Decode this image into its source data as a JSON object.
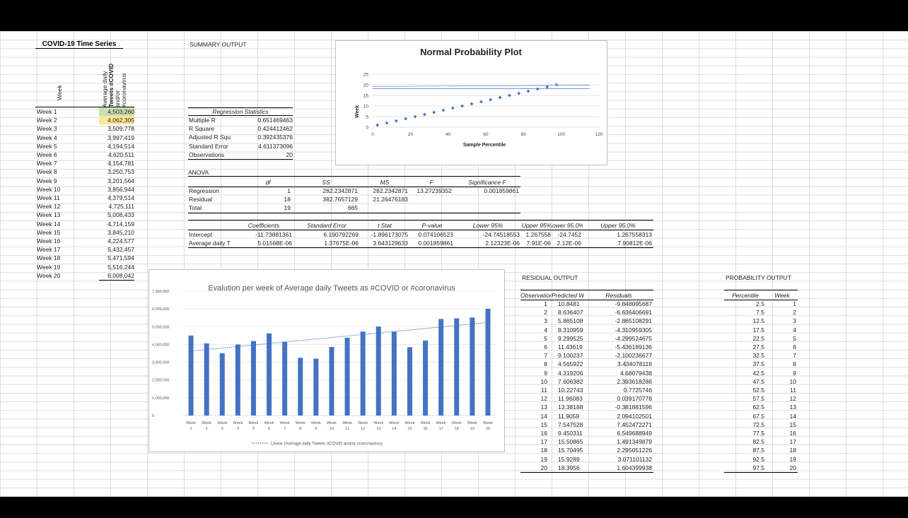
{
  "covid": {
    "title": "COVID-19 Time Series",
    "col_week": "Week",
    "col_avg": [
      "Average daily",
      "Tweets #COVID",
      "and/or",
      "#coronavirus"
    ],
    "rows": [
      [
        "Week 1",
        "4,503,260"
      ],
      [
        "Week 2",
        "4,062,305"
      ],
      [
        "Week 3",
        "3,509,778"
      ],
      [
        "Week 4",
        "3,997,419"
      ],
      [
        "Week 5",
        "4,194,514"
      ],
      [
        "Week 6",
        "4,620,511"
      ],
      [
        "Week 7",
        "4,154,781"
      ],
      [
        "Week 8",
        "3,250,753"
      ],
      [
        "Week 9",
        "3,201,564"
      ],
      [
        "Week 10",
        "3,856,944"
      ],
      [
        "Week 11",
        "4,379,514"
      ],
      [
        "Week 12",
        "4,725,111"
      ],
      [
        "Week 13",
        "5,008,433"
      ],
      [
        "Week 14",
        "4,714,159"
      ],
      [
        "Week 15",
        "3,845,210"
      ],
      [
        "Week 16",
        "4,224,577"
      ],
      [
        "Week 17",
        "5,432,457"
      ],
      [
        "Week 18",
        "5,471,594"
      ],
      [
        "Week 19",
        "5,516,244"
      ],
      [
        "Week 20",
        "6,008,042"
      ]
    ]
  },
  "summary": {
    "title": "SUMMARY OUTPUT",
    "reg_stats_title": "Regression Statistics",
    "reg_stats": [
      [
        "Multiple R",
        "0.651469463"
      ],
      [
        "R Square",
        "0.424412462"
      ],
      [
        "Adjusted R Squ",
        "0.392435376"
      ],
      [
        "Standard Error",
        "4.611373096"
      ],
      [
        "Observations",
        "20"
      ]
    ],
    "anova_title": "ANOVA",
    "anova_headers": [
      "df",
      "SS",
      "MS",
      "F",
      "Significance F"
    ],
    "anova_rows": [
      [
        "Regression",
        "1",
        "282.2342871",
        "282.2342871",
        "13.27239352",
        "0.001859861"
      ],
      [
        "Residual",
        "18",
        "382.7657129",
        "21.26476183",
        "",
        ""
      ],
      [
        "Total",
        "19",
        "665",
        "",
        "",
        ""
      ]
    ],
    "coef_headers": [
      "Coefficients",
      "Standard Error",
      "t Stat",
      "P-value",
      "Lower 95%",
      "Upper 95%",
      "ower 95.0%",
      "Upper 95.0%"
    ],
    "coef_rows": [
      [
        "Intercept",
        "-11.73881361",
        "6.190792269",
        "-1.896173075",
        "0.074106523",
        "-24.74518553",
        "1.267558",
        "-24.7452",
        "1.267558313"
      ],
      [
        "Average daily T",
        "5.01568E-06",
        "1.37675E-06",
        "3.643129633",
        "0.001859861",
        "2.12323E-06",
        "7.91E-06",
        "2.12E-06",
        "7.90812E-06"
      ]
    ]
  },
  "npp": {
    "title": "Normal Probability Plot",
    "ylabel": "Week",
    "xlabel": "Sample Percentile",
    "yticks": [
      "25",
      "20",
      "15",
      "10",
      "5",
      "0"
    ],
    "xticks": [
      "0",
      "20",
      "40",
      "60",
      "80",
      "100",
      "120"
    ]
  },
  "chart_data": [
    {
      "type": "bar",
      "title": "Evalution per week of Average daily Tweets as #COVID or #coronavirus",
      "categories": [
        "Week 1",
        "Week 2",
        "Week 3",
        "Week 4",
        "Week 5",
        "Week 6",
        "Week 7",
        "Week 8",
        "Week 9",
        "Week 10",
        "Week 11",
        "Week 12",
        "Week 13",
        "Week 14",
        "Week 15",
        "Week 16",
        "Week 17",
        "Week 18",
        "Week 19",
        "Week 20"
      ],
      "values": [
        4503260,
        4062305,
        3509778,
        3997419,
        4194514,
        4620511,
        4154781,
        3250753,
        3201564,
        3856944,
        4379514,
        4725111,
        5008433,
        4714159,
        3845210,
        4224577,
        5432457,
        5471594,
        5516244,
        6008042
      ],
      "ylim": [
        0,
        7000000
      ],
      "yticks": [
        "7,000,000",
        "6,000,000",
        "5,000,000",
        "4,000,000",
        "3,000,000",
        "2,000,000",
        "1,000,000",
        "0"
      ],
      "xtick_top": "Week",
      "xtick_bottom": [
        "1",
        "2",
        "3",
        "4",
        "5",
        "6",
        "7",
        "8",
        "9",
        "10",
        "11",
        "12",
        "13",
        "14",
        "15",
        "16",
        "17",
        "18",
        "19",
        "20"
      ],
      "trendline_legend": "Linear (Average daily Tweets #COVID and/or #coronavirus)",
      "color": "#4472c4"
    },
    {
      "type": "scatter",
      "title": "Normal Probability Plot",
      "x": [
        2.5,
        7.5,
        12.5,
        17.5,
        22.5,
        27.5,
        32.5,
        37.5,
        42.5,
        47.5,
        52.5,
        57.5,
        62.5,
        67.5,
        72.5,
        77.5,
        82.5,
        87.5,
        92.5,
        97.5
      ],
      "y": [
        1,
        2,
        3,
        4,
        5,
        6,
        7,
        8,
        9,
        10,
        11,
        12,
        13,
        14,
        15,
        16,
        17,
        18,
        19,
        20
      ],
      "xlim": [
        0,
        120
      ],
      "ylim": [
        0,
        25
      ],
      "xlabel": "Sample Percentile",
      "ylabel": "Week",
      "color": "#4472c4"
    }
  ],
  "residual": {
    "title": "RESIDUAL OUTPUT",
    "headers": [
      "Observation",
      "Predicted We",
      "Residuals"
    ],
    "rows": [
      [
        "1",
        "10.8481",
        "-9.848095687"
      ],
      [
        "2",
        "8.636407",
        "-6.636406691"
      ],
      [
        "3",
        "5.865108",
        "-2.865108291"
      ],
      [
        "4",
        "8.310959",
        "-4.310959305"
      ],
      [
        "5",
        "9.299525",
        "-4.299524675"
      ],
      [
        "6",
        "11.43619",
        "-5.436189136"
      ],
      [
        "7",
        "9.100237",
        "-2.100236677"
      ],
      [
        "8",
        "4.565922",
        "3.434078116"
      ],
      [
        "9",
        "4.319206",
        "4.68079438"
      ],
      [
        "10",
        "7.606382",
        "2.393618286"
      ],
      [
        "11",
        "10.22743",
        "0.7725746"
      ],
      [
        "12",
        "11.96083",
        "0.039170778"
      ],
      [
        "13",
        "13.38188",
        "-0.381881596"
      ],
      [
        "14",
        "11.9059",
        "2.094102501"
      ],
      [
        "15",
        "7.547528",
        "7.452472271"
      ],
      [
        "16",
        "9.450311",
        "6.549688949"
      ],
      [
        "17",
        "15.50865",
        "1.491349879"
      ],
      [
        "18",
        "15.70495",
        "2.295051226"
      ],
      [
        "19",
        "15.9289",
        "3.071101132"
      ],
      [
        "20",
        "18.3956",
        "1.604399938"
      ]
    ]
  },
  "probability": {
    "title": "PROBABILITY OUTPUT",
    "headers": [
      "Percentile",
      "Week"
    ],
    "rows": [
      [
        "2.5",
        "1"
      ],
      [
        "7.5",
        "2"
      ],
      [
        "12.5",
        "3"
      ],
      [
        "17.5",
        "4"
      ],
      [
        "22.5",
        "5"
      ],
      [
        "27.5",
        "6"
      ],
      [
        "32.5",
        "7"
      ],
      [
        "37.5",
        "8"
      ],
      [
        "42.5",
        "9"
      ],
      [
        "47.5",
        "10"
      ],
      [
        "52.5",
        "11"
      ],
      [
        "57.5",
        "12"
      ],
      [
        "62.5",
        "13"
      ],
      [
        "67.5",
        "14"
      ],
      [
        "72.5",
        "15"
      ],
      [
        "77.5",
        "16"
      ],
      [
        "82.5",
        "17"
      ],
      [
        "87.5",
        "18"
      ],
      [
        "92.5",
        "19"
      ],
      [
        "97.5",
        "20"
      ]
    ]
  }
}
